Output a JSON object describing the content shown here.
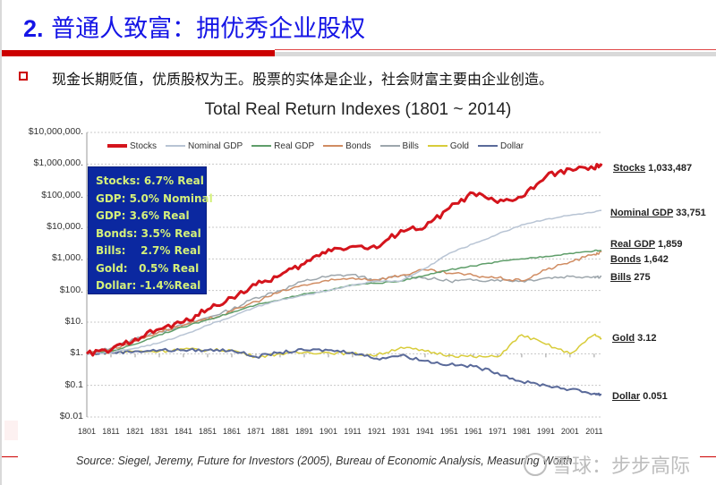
{
  "slide": {
    "title_number": "2.",
    "title_text": "普通人致富：拥优秀企业股权",
    "bullet_text": "现金长期贬值，优质股权为王。股票的实体是企业，社会财富主要由企业创造。",
    "accent_red": "#cc0000",
    "title_blue": "#1515e6"
  },
  "chart_data": {
    "type": "line",
    "title": "Total Real Return Indexes (1801 ~ 2014)",
    "xlabel": "",
    "ylabel": "",
    "yscale": "log",
    "ylim": [
      0.01,
      10000000
    ],
    "xlim": [
      1801,
      2014
    ],
    "grid": true,
    "legend_position": "top",
    "y_tick_labels": [
      "$10,000,000.",
      "$1,000,000.",
      "$100,000.",
      "$10,000.",
      "$1,000.",
      "$100.",
      "$10.",
      "$1.",
      "$0.1",
      "$0.01"
    ],
    "y_tick_values": [
      10000000,
      1000000,
      100000,
      10000,
      1000,
      100,
      10,
      1,
      0.1,
      0.01
    ],
    "x_tick_labels": [
      "1801",
      "1811",
      "1821",
      "1831",
      "1841",
      "1851",
      "1861",
      "1871",
      "1881",
      "1891",
      "1901",
      "1911",
      "1921",
      "1931",
      "1941",
      "1951",
      "1961",
      "1971",
      "1981",
      "1991",
      "2001",
      "2011"
    ],
    "x": [
      1801,
      1811,
      1821,
      1831,
      1841,
      1851,
      1861,
      1871,
      1881,
      1891,
      1901,
      1911,
      1921,
      1931,
      1941,
      1951,
      1961,
      1971,
      1981,
      1991,
      2001,
      2011,
      2014
    ],
    "series": [
      {
        "name": "Stocks",
        "color": "#d4141c",
        "width": 3,
        "values": [
          1,
          1.3,
          3,
          6,
          10,
          25,
          60,
          150,
          300,
          700,
          2000,
          2500,
          2200,
          8000,
          10000,
          40000,
          120000,
          60000,
          90000,
          400000,
          700000,
          700000,
          1033487
        ]
      },
      {
        "name": "Nominal GDP",
        "color": "#b8c4d4",
        "width": 1.5,
        "values": [
          1,
          1.1,
          1.5,
          2.2,
          4,
          8,
          15,
          30,
          50,
          70,
          100,
          150,
          200,
          200,
          500,
          1500,
          3000,
          6000,
          12000,
          18000,
          24000,
          30000,
          33751
        ]
      },
      {
        "name": "Real GDP",
        "color": "#5f9e6a",
        "width": 1.5,
        "values": [
          1,
          1.2,
          2,
          4,
          7,
          12,
          20,
          35,
          50,
          80,
          100,
          150,
          170,
          200,
          300,
          450,
          600,
          800,
          1000,
          1200,
          1500,
          1800,
          1859
        ]
      },
      {
        "name": "Bonds",
        "color": "#d08c62",
        "width": 1.5,
        "values": [
          1,
          1.4,
          2.5,
          5,
          8,
          12,
          22,
          45,
          90,
          150,
          200,
          250,
          220,
          300,
          450,
          350,
          300,
          250,
          200,
          450,
          800,
          1400,
          1642
        ]
      },
      {
        "name": "Bills",
        "color": "#9da6ac",
        "width": 1.5,
        "values": [
          1,
          1.5,
          3,
          5,
          8,
          14,
          25,
          60,
          100,
          200,
          280,
          320,
          200,
          300,
          250,
          200,
          210,
          220,
          200,
          250,
          280,
          275,
          275
        ]
      },
      {
        "name": "Gold",
        "color": "#d8cc3a",
        "width": 1.5,
        "values": [
          1,
          1.1,
          1.2,
          1.2,
          1.4,
          1.3,
          1.3,
          0.8,
          1.0,
          1.1,
          1.1,
          1.0,
          0.9,
          1.6,
          1.2,
          0.9,
          0.8,
          0.8,
          4.0,
          2.0,
          1.0,
          4.0,
          3.12
        ]
      },
      {
        "name": "Dollar",
        "color": "#5a6a9a",
        "width": 2,
        "values": [
          1,
          1.1,
          1.2,
          1.3,
          1.3,
          1.3,
          1.3,
          0.8,
          1.1,
          1.3,
          1.3,
          1.1,
          0.7,
          0.9,
          0.6,
          0.45,
          0.4,
          0.25,
          0.13,
          0.1,
          0.075,
          0.055,
          0.051
        ]
      }
    ],
    "annotation_box": [
      "Stocks: 6.7% Real",
      "GDP: 5.0% Nominal",
      "GDP: 3.6% Real",
      "Bonds: 3.5% Real",
      "Bills:    2.7% Real",
      "Gold:   0.5% Real",
      "Dollar: -1.4%Real"
    ],
    "end_labels": [
      {
        "name": "Stocks",
        "value": "1,033,487"
      },
      {
        "name": "Nominal GDP",
        "value": "33,751"
      },
      {
        "name": "Real GDP",
        "value": "1,859"
      },
      {
        "name": "Bonds",
        "value": "1,642"
      },
      {
        "name": "Bills",
        "value": "275"
      },
      {
        "name": "Gold",
        "value": "3.12"
      },
      {
        "name": "Dollar",
        "value": "0.051"
      }
    ],
    "source": "Source: Siegel, Jeremy, Future for Investors (2005), Bureau of Economic Analysis, Measuring Worth"
  },
  "watermark": {
    "text": "雪球：步步高际"
  }
}
